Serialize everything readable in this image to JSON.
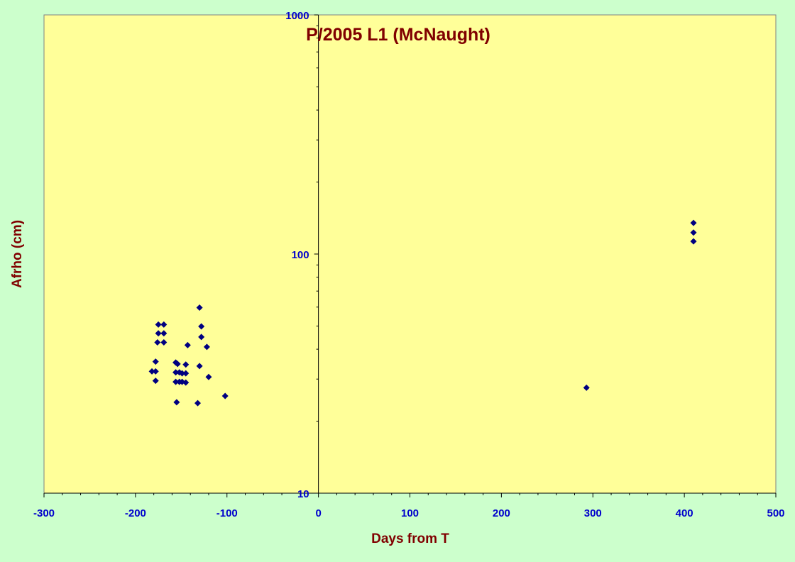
{
  "chart_data": {
    "type": "scatter",
    "title": "P/2005 L1 (McNaught)",
    "xlabel": "Days from T",
    "ylabel": "Afrho (cm)",
    "xlim": [
      -300,
      500
    ],
    "ylim": [
      10,
      1000
    ],
    "y_scale": "log",
    "x_ticks": [
      "-300",
      "-200",
      "-100",
      "0",
      "100",
      "200",
      "300",
      "400",
      "500"
    ],
    "y_ticks": [
      "10",
      "100",
      "1000"
    ],
    "grid": false,
    "legend": "none",
    "colors": {
      "page_background": "#ccffcc",
      "plot_background": "#ffff99",
      "marker": "#000080",
      "tick_labels": "#0000cc",
      "titles": "#800000"
    },
    "series": [
      {
        "marker": "diamond",
        "points": [
          [
            -182,
            32.3
          ],
          [
            -178,
            32.3
          ],
          [
            -178,
            35.5
          ],
          [
            -178,
            29.5
          ],
          [
            -176,
            42.7
          ],
          [
            -175,
            46.6
          ],
          [
            -175,
            50.7
          ],
          [
            -169,
            50.7
          ],
          [
            -169,
            46.6
          ],
          [
            -169,
            42.7
          ],
          [
            -156,
            35.2
          ],
          [
            -156,
            32.0
          ],
          [
            -156,
            29.2
          ],
          [
            -155,
            24.0
          ],
          [
            -154,
            34.7
          ],
          [
            -152,
            32.0
          ],
          [
            -152,
            29.2
          ],
          [
            -149,
            31.7
          ],
          [
            -149,
            29.2
          ],
          [
            -145,
            29.0
          ],
          [
            -145,
            31.7
          ],
          [
            -145,
            34.5
          ],
          [
            -143,
            41.6
          ],
          [
            -132,
            23.8
          ],
          [
            -130,
            59.7
          ],
          [
            -130,
            34.0
          ],
          [
            -128,
            49.8
          ],
          [
            -128,
            45.0
          ],
          [
            -122,
            40.9
          ],
          [
            -120,
            30.6
          ],
          [
            -102,
            25.5
          ],
          [
            293,
            27.6
          ],
          [
            410,
            135.0
          ],
          [
            410,
            123.0
          ],
          [
            410,
            113.0
          ]
        ]
      }
    ]
  }
}
